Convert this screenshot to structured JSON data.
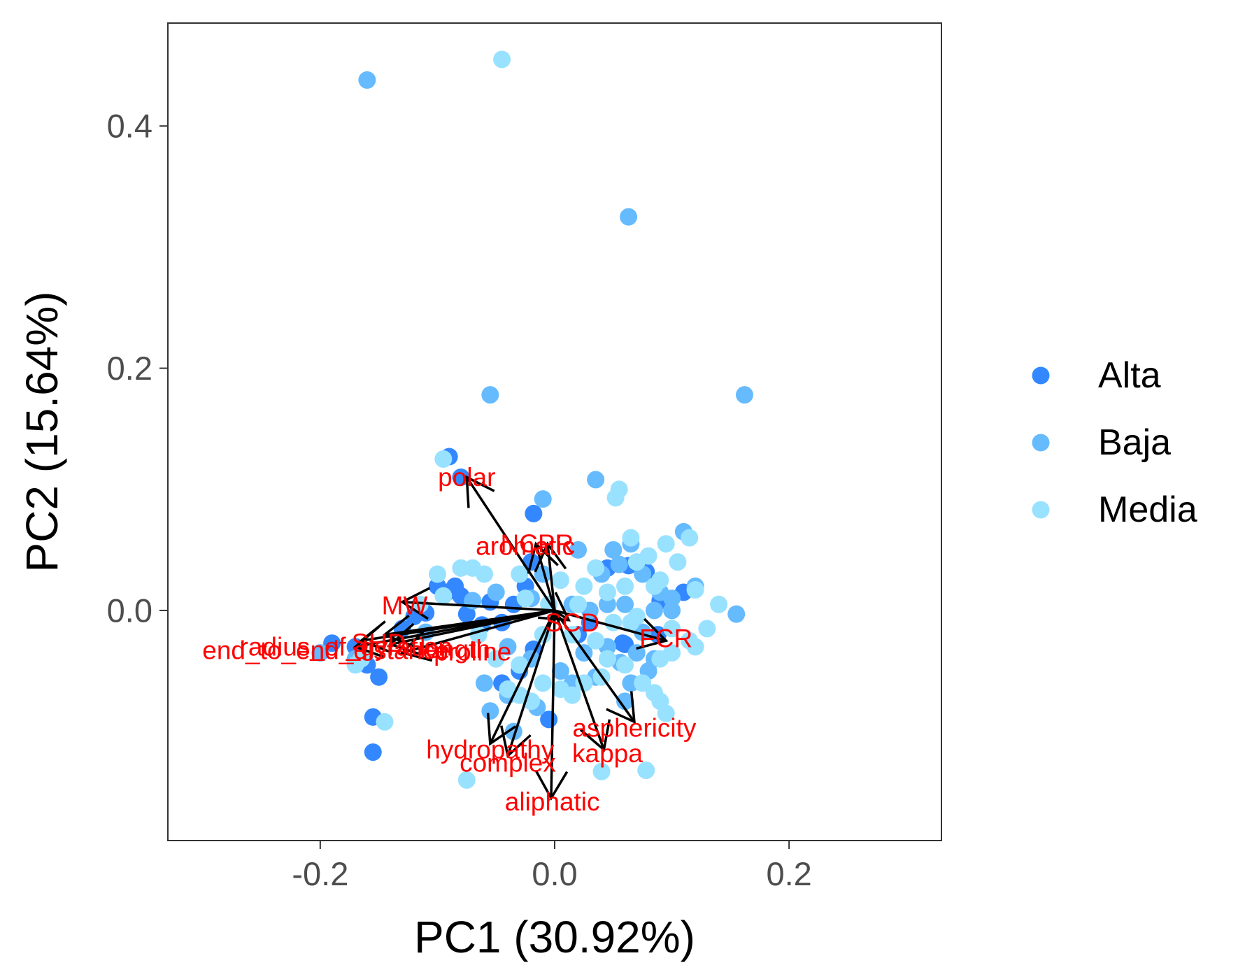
{
  "chart_data": {
    "type": "scatter",
    "subtype": "pca-biplot",
    "xlabel": "PC1 (30.92%)",
    "ylabel": "PC2 (15.64%)",
    "xlim": [
      -0.33,
      0.33
    ],
    "ylim": [
      -0.19,
      0.485
    ],
    "x_ticks": [
      -0.2,
      0.0,
      0.2
    ],
    "x_tick_labels": [
      "-0.2",
      "0.0",
      "0.2"
    ],
    "y_ticks": [
      0.0,
      0.2,
      0.4
    ],
    "y_tick_labels": [
      "0.0",
      "0.2",
      "0.4"
    ],
    "grid": false,
    "legend_position": "right",
    "series": [
      {
        "name": "Alta",
        "color": "#3388ff",
        "points": [
          [
            -0.09,
            0.127
          ],
          [
            -0.08,
            0.11
          ],
          [
            -0.018,
            0.08
          ],
          [
            0.063,
            0.037
          ],
          [
            0.045,
            0.035
          ],
          [
            -0.1,
            0.02
          ],
          [
            -0.085,
            0.02
          ],
          [
            -0.092,
            0.015
          ],
          [
            -0.08,
            0.012
          ],
          [
            -0.07,
            0.008
          ],
          [
            -0.055,
            0.007
          ],
          [
            -0.035,
            0.005
          ],
          [
            -0.12,
            -0.005
          ],
          [
            -0.11,
            -0.002
          ],
          [
            -0.075,
            -0.003
          ],
          [
            -0.062,
            -0.012
          ],
          [
            -0.045,
            -0.01
          ],
          [
            -0.02,
            0.04
          ],
          [
            0.088,
            -0.02
          ],
          [
            0.058,
            -0.027
          ],
          [
            -0.018,
            -0.032
          ],
          [
            -0.19,
            -0.027
          ],
          [
            -0.17,
            -0.03
          ],
          [
            -0.16,
            -0.045
          ],
          [
            -0.15,
            -0.055
          ],
          [
            -0.155,
            -0.088
          ],
          [
            -0.155,
            -0.117
          ],
          [
            -0.005,
            -0.09
          ],
          [
            0.06,
            -0.028
          ],
          [
            0.078,
            0.032
          ],
          [
            0.11,
            0.015
          ],
          [
            0.09,
            0.008
          ],
          [
            -0.03,
            -0.05
          ],
          [
            -0.045,
            -0.06
          ],
          [
            0.02,
            -0.02
          ],
          [
            -0.025,
            0.02
          ],
          [
            0.03,
            -0.01
          ],
          [
            -0.13,
            -0.015
          ]
        ]
      },
      {
        "name": "Baja",
        "color": "#66bbff",
        "points": [
          [
            -0.16,
            0.438
          ],
          [
            0.063,
            0.325
          ],
          [
            -0.055,
            0.178
          ],
          [
            0.162,
            0.178
          ],
          [
            0.035,
            0.108
          ],
          [
            -0.01,
            0.092
          ],
          [
            0.065,
            0.055
          ],
          [
            0.05,
            0.05
          ],
          [
            0.02,
            0.05
          ],
          [
            0.04,
            0.03
          ],
          [
            0.075,
            0.03
          ],
          [
            0.1,
            0.01
          ],
          [
            0.06,
            0.005
          ],
          [
            0.155,
            -0.003
          ],
          [
            0.09,
            0.015
          ],
          [
            -0.07,
            0.008
          ],
          [
            -0.05,
            0.015
          ],
          [
            -0.02,
            0.01
          ],
          [
            0.015,
            0.005
          ],
          [
            0.03,
            0.0
          ],
          [
            0.045,
            -0.03
          ],
          [
            0.07,
            -0.035
          ],
          [
            0.085,
            -0.04
          ],
          [
            0.056,
            -0.043
          ],
          [
            -0.06,
            -0.06
          ],
          [
            -0.04,
            -0.07
          ],
          [
            -0.015,
            -0.08
          ],
          [
            -0.055,
            -0.083
          ],
          [
            0.06,
            -0.075
          ],
          [
            -0.035,
            -0.1
          ],
          [
            -0.2,
            -0.035
          ],
          [
            -0.17,
            -0.04
          ],
          [
            -0.11,
            -0.018
          ],
          [
            0.075,
            -0.018
          ],
          [
            0.1,
            0.0
          ],
          [
            0.12,
            0.02
          ],
          [
            0.005,
            -0.05
          ],
          [
            -0.02,
            -0.04
          ],
          [
            0.08,
            -0.05
          ],
          [
            0.035,
            -0.055
          ],
          [
            0.015,
            -0.06
          ],
          [
            0.065,
            -0.06
          ],
          [
            0.025,
            -0.035
          ],
          [
            -0.01,
            0.03
          ],
          [
            0.045,
            0.005
          ],
          [
            0.11,
            0.065
          ],
          [
            0.085,
            0.0
          ],
          [
            -0.04,
            -0.03
          ],
          [
            0.055,
            0.038
          ]
        ]
      },
      {
        "name": "Media",
        "color": "#99e2ff",
        "points": [
          [
            -0.045,
            0.455
          ],
          [
            -0.095,
            0.125
          ],
          [
            0.055,
            0.1
          ],
          [
            0.052,
            0.093
          ],
          [
            0.115,
            0.06
          ],
          [
            0.095,
            0.055
          ],
          [
            0.065,
            0.06
          ],
          [
            0.08,
            0.045
          ],
          [
            0.07,
            0.04
          ],
          [
            0.09,
            0.025
          ],
          [
            0.12,
            0.017
          ],
          [
            0.14,
            0.005
          ],
          [
            0.115,
            -0.025
          ],
          [
            0.12,
            -0.03
          ],
          [
            0.1,
            -0.035
          ],
          [
            0.09,
            -0.04
          ],
          [
            0.075,
            -0.06
          ],
          [
            0.085,
            -0.068
          ],
          [
            0.09,
            -0.075
          ],
          [
            0.095,
            -0.085
          ],
          [
            0.04,
            -0.055
          ],
          [
            0.025,
            -0.06
          ],
          [
            0.015,
            -0.07
          ],
          [
            0.005,
            -0.065
          ],
          [
            -0.01,
            -0.06
          ],
          [
            -0.04,
            -0.065
          ],
          [
            -0.03,
            -0.07
          ],
          [
            -0.02,
            -0.075
          ],
          [
            0.035,
            0.035
          ],
          [
            0.025,
            0.02
          ],
          [
            0.045,
            0.015
          ],
          [
            0.06,
            0.02
          ],
          [
            0.005,
            0.025
          ],
          [
            -0.025,
            0.01
          ],
          [
            -0.06,
            0.03
          ],
          [
            -0.07,
            0.035
          ],
          [
            -0.08,
            0.035
          ],
          [
            -0.1,
            0.03
          ],
          [
            -0.095,
            0.012
          ],
          [
            -0.115,
            0.005
          ],
          [
            -0.165,
            -0.04
          ],
          [
            -0.17,
            -0.045
          ],
          [
            -0.145,
            -0.092
          ],
          [
            -0.075,
            -0.14
          ],
          [
            0.04,
            -0.133
          ],
          [
            0.078,
            -0.132
          ],
          [
            -0.01,
            -0.02
          ],
          [
            0.015,
            -0.02
          ],
          [
            -0.005,
            0.005
          ],
          [
            0.02,
            0.005
          ],
          [
            0.05,
            -0.01
          ],
          [
            0.065,
            -0.01
          ],
          [
            0.1,
            -0.015
          ],
          [
            0.13,
            -0.015
          ],
          [
            0.035,
            -0.025
          ],
          [
            0.06,
            -0.045
          ],
          [
            -0.05,
            -0.04
          ],
          [
            -0.065,
            -0.02
          ],
          [
            -0.03,
            0.03
          ],
          [
            0.07,
            -0.005
          ],
          [
            0.085,
            0.02
          ],
          [
            0.105,
            0.04
          ],
          [
            -0.03,
            -0.045
          ],
          [
            0.045,
            -0.04
          ]
        ]
      }
    ],
    "loadings": [
      {
        "name": "polar",
        "x": -0.075,
        "y": 0.11
      },
      {
        "name": "aromatic",
        "x": -0.016,
        "y": 0.055
      },
      {
        "name": "NCPR",
        "x": -0.006,
        "y": 0.055
      },
      {
        "name": "MW",
        "x": -0.13,
        "y": 0.007
      },
      {
        "name": "radius_of_gyration",
        "x": -0.165,
        "y": -0.025
      },
      {
        "name": "end_to_end_distance",
        "x": -0.17,
        "y": -0.03
      },
      {
        "name": "SHD",
        "x": -0.145,
        "y": -0.02
      },
      {
        "name": "length",
        "x": -0.14,
        "y": -0.028
      },
      {
        "name": "proline",
        "x": -0.13,
        "y": -0.035
      },
      {
        "name": "SCD",
        "x": 0.012,
        "y": -0.008
      },
      {
        "name": "FCR",
        "x": 0.095,
        "y": -0.025
      },
      {
        "name": "asphericity",
        "x": 0.068,
        "y": -0.092
      },
      {
        "name": "kappa",
        "x": 0.042,
        "y": -0.115
      },
      {
        "name": "hydropathy",
        "x": -0.055,
        "y": -0.11
      },
      {
        "name": "complex",
        "x": -0.04,
        "y": -0.12
      },
      {
        "name": "aliphatic",
        "x": -0.003,
        "y": -0.155
      }
    ],
    "loading_labels": [
      {
        "text": "polar",
        "x": -0.075,
        "y": 0.11
      },
      {
        "text": "aromatic",
        "x": -0.025,
        "y": 0.053
      },
      {
        "text": "NCPR",
        "x": -0.015,
        "y": 0.055
      },
      {
        "text": "MW",
        "x": -0.128,
        "y": 0.004
      },
      {
        "text": "radius_of_gyration",
        "x": -0.178,
        "y": -0.03
      },
      {
        "text": "end_to_end_distance",
        "x": -0.195,
        "y": -0.033
      },
      {
        "text": "SHD",
        "x": -0.15,
        "y": -0.027
      },
      {
        "text": "length",
        "x": -0.085,
        "y": -0.032
      },
      {
        "text": "proline",
        "x": -0.07,
        "y": -0.034
      },
      {
        "text": "SCD",
        "x": 0.015,
        "y": -0.01
      },
      {
        "text": "FCR",
        "x": 0.095,
        "y": -0.023
      },
      {
        "text": "asphericity",
        "x": 0.068,
        "y": -0.097
      },
      {
        "text": "kappa",
        "x": 0.045,
        "y": -0.118
      },
      {
        "text": "hydropathy",
        "x": -0.055,
        "y": -0.115
      },
      {
        "text": "complex",
        "x": -0.04,
        "y": -0.126
      },
      {
        "text": "aliphatic",
        "x": -0.002,
        "y": -0.158
      }
    ],
    "arrow_color": "#000000",
    "label_color": "#ff0000"
  }
}
